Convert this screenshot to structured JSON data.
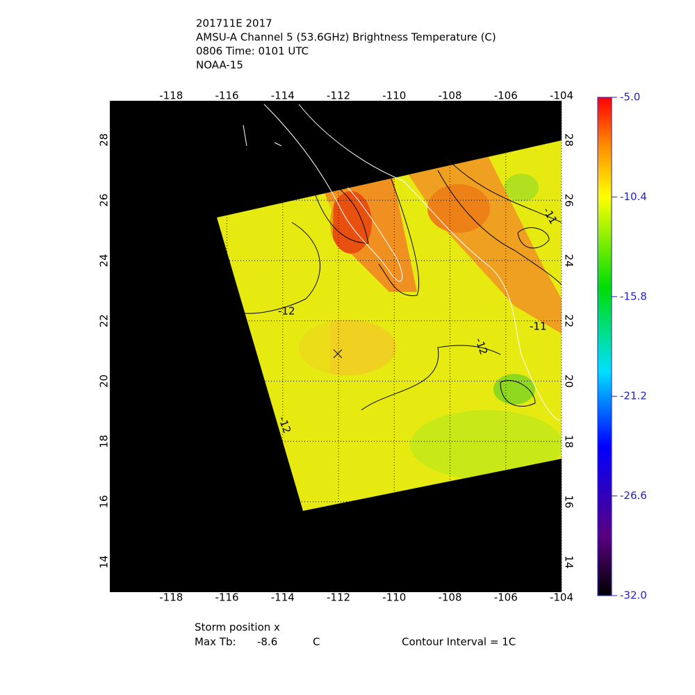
{
  "header": {
    "lines": [
      "201711E 2017",
      "AMSU-A Channel 5 (53.6GHz) Brightness Temperature (C)",
      "0806 Time: 0101 UTC",
      "NOAA-15"
    ]
  },
  "map": {
    "lonlim": [
      -120.2,
      -104
    ],
    "latlim": [
      13.0,
      29.3
    ],
    "lon_ticks": [
      -118,
      -116,
      -114,
      -112,
      -110,
      -108,
      -106,
      -104
    ],
    "lat_ticks": [
      14,
      16,
      18,
      20,
      22,
      24,
      26,
      28
    ],
    "contour_labels": [
      "-12",
      "-11",
      "-12",
      "-11",
      "-12"
    ]
  },
  "colorbar": {
    "lim": [
      -32,
      -5
    ],
    "ticks": [
      {
        "value": -5,
        "label": "-5.0"
      },
      {
        "value": -10.4,
        "label": "-10.4"
      },
      {
        "value": -15.8,
        "label": "-15.8"
      },
      {
        "value": -21.2,
        "label": "-21.2"
      },
      {
        "value": -26.6,
        "label": "-26.6"
      },
      {
        "value": -32,
        "label": "-32.0"
      }
    ]
  },
  "footer": {
    "storm": "Storm position x",
    "max_tb_label": "Max Tb:",
    "max_tb": "-8.6",
    "unit": "C",
    "contour_interval": "Contour Interval = 1C"
  }
}
